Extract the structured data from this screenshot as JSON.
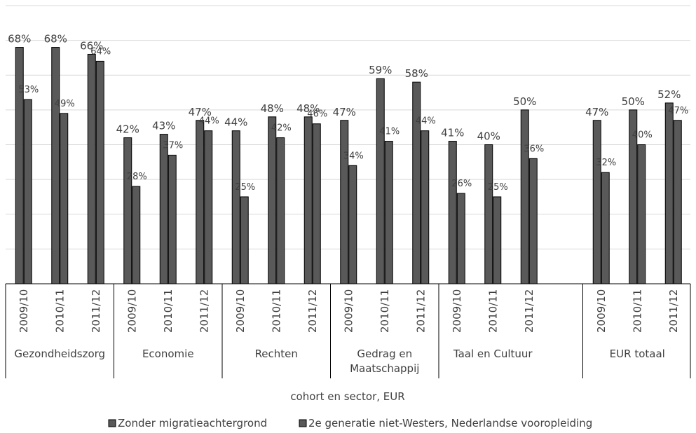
{
  "chart_data": {
    "type": "bar",
    "title": "",
    "xlabel": "cohort en sector, EUR",
    "ylabel": "",
    "ylim": [
      0,
      80
    ],
    "grid": true,
    "legend_position": "bottom",
    "groups": [
      {
        "name": "Gezondheidszorg",
        "label_lines": [
          "Gezondheidszorg"
        ],
        "cohorts": [
          "2009/10",
          "2010/11",
          "2011/12"
        ]
      },
      {
        "name": "Economie",
        "label_lines": [
          "Economie"
        ],
        "cohorts": [
          "2009/10",
          "2010/11",
          "2011/12"
        ]
      },
      {
        "name": "Rechten",
        "label_lines": [
          "Rechten"
        ],
        "cohorts": [
          "2009/10",
          "2010/11",
          "2011/12"
        ]
      },
      {
        "name": "Gedrag en Maatschappij",
        "label_lines": [
          "Gedrag en",
          "Maatschappij"
        ],
        "cohorts": [
          "2009/10",
          "2010/11",
          "2011/12"
        ]
      },
      {
        "name": "Taal en Cultuur",
        "label_lines": [
          "Taal en Cultuur"
        ],
        "cohorts": [
          "2009/10",
          "2010/11",
          "2011/12"
        ]
      },
      {
        "name": "EUR totaal",
        "label_lines": [
          "EUR totaal"
        ],
        "cohorts": [
          "2009/10",
          "2010/11",
          "2011/12"
        ]
      }
    ],
    "series": [
      {
        "name": "Zonder migratieachtergrond",
        "color": "#595959",
        "values": [
          68,
          68,
          66,
          42,
          43,
          47,
          44,
          48,
          48,
          47,
          59,
          58,
          41,
          40,
          50,
          47,
          50,
          52
        ],
        "labels": [
          "68%",
          "68%",
          "66%",
          "42%",
          "43%",
          "47%",
          "44%",
          "48%",
          "48%",
          "47%",
          "59%",
          "58%",
          "41%",
          "40%",
          "50%",
          "47%",
          "50%",
          "52%"
        ]
      },
      {
        "name": "2e generatie niet-Westers, Nederlandse vooropleiding",
        "color": "#595959",
        "values": [
          53,
          49,
          64,
          28,
          37,
          44,
          25,
          42,
          46,
          34,
          41,
          44,
          26,
          25,
          36,
          32,
          40,
          47
        ],
        "labels": [
          "53%",
          "49%",
          "64%",
          "28%",
          "37%",
          "44%",
          "25%",
          "42%",
          "46%",
          "34%",
          "41%",
          "44%",
          "26%",
          "25%",
          "36%",
          "32%",
          "40%",
          "47%"
        ]
      }
    ]
  }
}
